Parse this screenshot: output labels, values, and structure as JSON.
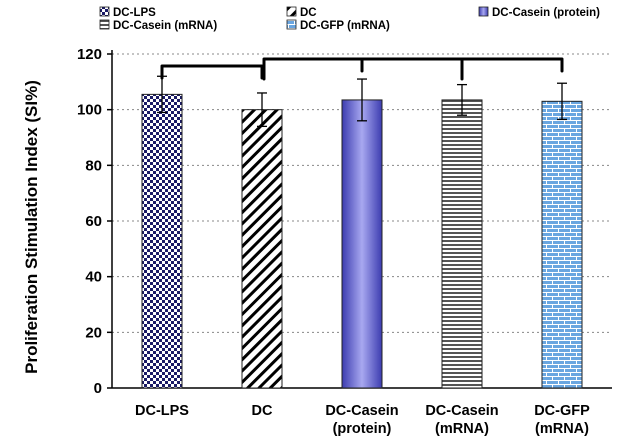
{
  "chart_data": {
    "type": "bar",
    "title": "",
    "xlabel": "",
    "ylabel": "Proliferation Stimulation Index (SI%)",
    "ylim": [
      0,
      120
    ],
    "yticks": [
      0,
      20,
      40,
      60,
      80,
      100,
      120
    ],
    "grid": "horizontal dotted",
    "legend_position": "top",
    "categories": [
      [
        "DC-LPS"
      ],
      [
        "DC"
      ],
      [
        "DC-Casein",
        "(protein)"
      ],
      [
        "DC-Casein",
        "(mRNA)"
      ],
      [
        "DC-GFP",
        "(mRNA)"
      ]
    ],
    "values": [
      105.5,
      100,
      103.5,
      103.5,
      103
    ],
    "errors": [
      6.5,
      6,
      7.5,
      5.5,
      6.5
    ],
    "legend": [
      "DC-LPS",
      "DC",
      "DC-Casein (protein)",
      "DC-Casein (mRNA)",
      "DC-GFP (mRNA)"
    ],
    "fills": [
      {
        "pattern": "checker",
        "color": "#1a1a66"
      },
      {
        "pattern": "diagonal-hatch",
        "color": "#000000"
      },
      {
        "pattern": "solid-gradient",
        "color": "#7070d8"
      },
      {
        "pattern": "horizontal-lines",
        "color": "#555555"
      },
      {
        "pattern": "brick",
        "color": "#6aa6e0"
      }
    ],
    "brackets": [
      {
        "from": 0,
        "to": 1
      },
      {
        "from": 1,
        "to": 3
      },
      {
        "from": 2,
        "to": 4
      }
    ]
  }
}
